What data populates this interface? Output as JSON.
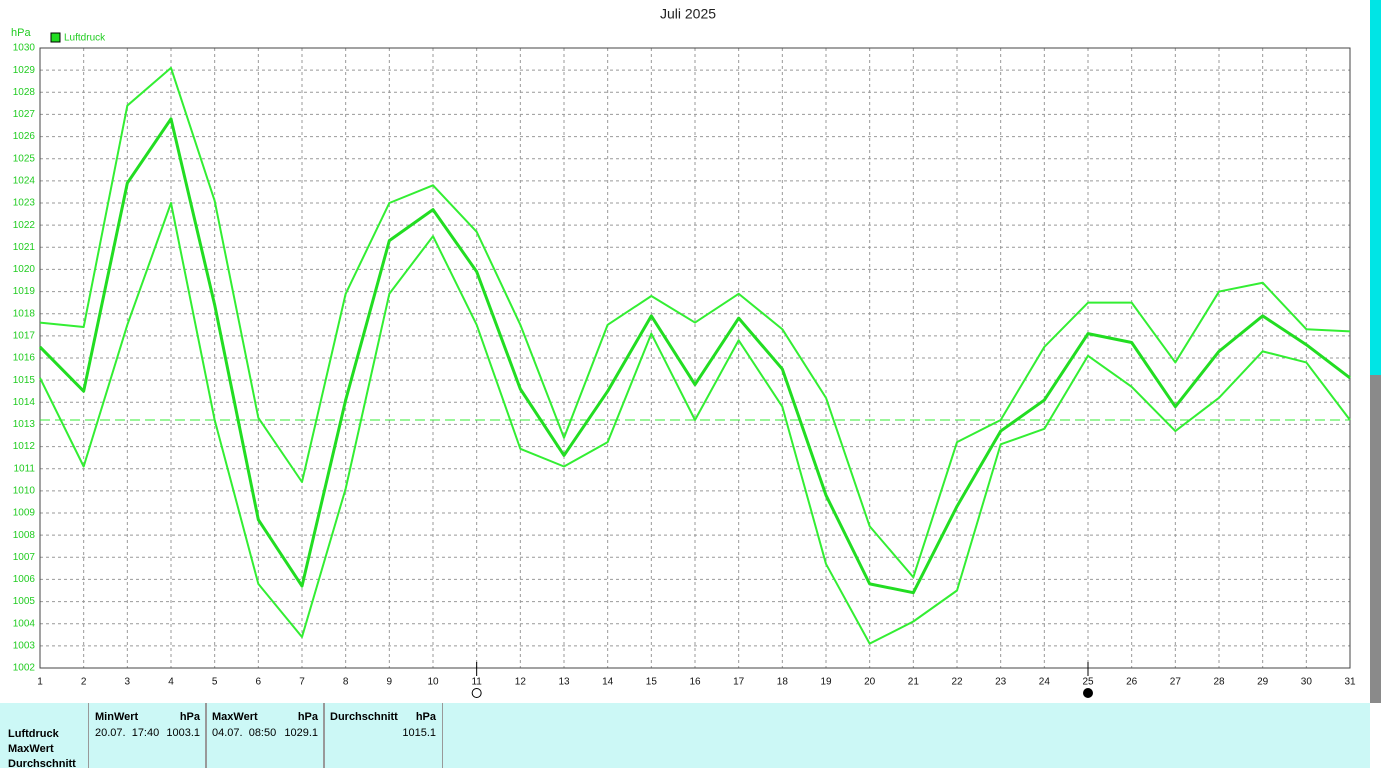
{
  "chart_data": {
    "type": "line",
    "title": "Juli 2025",
    "y_unit": "hPa",
    "x": [
      1,
      2,
      3,
      4,
      5,
      6,
      7,
      8,
      9,
      10,
      11,
      12,
      13,
      14,
      15,
      16,
      17,
      18,
      19,
      20,
      21,
      22,
      23,
      24,
      25,
      26,
      27,
      28,
      29,
      30,
      31
    ],
    "xlim": [
      1,
      31
    ],
    "xticks": [
      1,
      2,
      3,
      4,
      5,
      6,
      7,
      8,
      9,
      10,
      11,
      12,
      13,
      14,
      15,
      16,
      17,
      18,
      19,
      20,
      21,
      22,
      23,
      24,
      25,
      26,
      27,
      28,
      29,
      30,
      31
    ],
    "ylim": [
      1002,
      1030
    ],
    "yticks": [
      1002,
      1003,
      1004,
      1005,
      1006,
      1007,
      1008,
      1009,
      1010,
      1011,
      1012,
      1013,
      1014,
      1015,
      1016,
      1017,
      1018,
      1019,
      1020,
      1021,
      1022,
      1023,
      1024,
      1025,
      1026,
      1027,
      1028,
      1029,
      1030
    ],
    "grid": true,
    "legend": "top-left",
    "series": [
      {
        "color": "#33ee33",
        "values": [
          1017.6,
          1017.4,
          1027.4,
          1029.1,
          1023.1,
          1013.3,
          1010.4,
          1018.9,
          1023.0,
          1023.8,
          1021.7,
          1017.5,
          1012.4,
          1017.5,
          1018.8,
          1017.6,
          1018.9,
          1017.3,
          1014.2,
          1008.4,
          1006.1,
          1012.2,
          1013.2,
          1016.5,
          1018.5,
          1018.5,
          1015.8,
          1019.0,
          1019.4,
          1017.3,
          1017.2
        ]
      },
      {
        "name": "Luftdruck",
        "color": "#22dd22",
        "values": [
          1016.5,
          1014.5,
          1023.9,
          1026.8,
          1018.4,
          1008.7,
          1005.7,
          1014.1,
          1021.3,
          1022.7,
          1019.9,
          1014.6,
          1011.6,
          1014.5,
          1017.9,
          1014.8,
          1017.8,
          1015.5,
          1009.8,
          1005.8,
          1005.4,
          1009.3,
          1012.7,
          1014.1,
          1017.1,
          1016.7,
          1013.8,
          1016.3,
          1017.9,
          1016.6,
          1015.1
        ]
      },
      {
        "color": "#33ee33",
        "values": [
          1015.1,
          1011.1,
          1017.5,
          1023.0,
          1013.2,
          1005.8,
          1003.4,
          1010.1,
          1018.9,
          1021.5,
          1017.5,
          1011.9,
          1011.1,
          1012.2,
          1017.1,
          1013.2,
          1016.8,
          1013.8,
          1006.7,
          1003.1,
          1004.1,
          1005.5,
          1012.1,
          1012.8,
          1016.1,
          1014.7,
          1012.7,
          1014.2,
          1016.3,
          1015.8,
          1013.2
        ]
      }
    ],
    "reference_line": {
      "value": 1013.2,
      "color": "#33ee33"
    },
    "moon_phases": [
      {
        "x": 11,
        "filled": false
      },
      {
        "x": 25,
        "filled": true
      }
    ]
  },
  "table": {
    "row_labels": [
      "Luftdruck",
      "MaxWert",
      "Durchschnitt"
    ],
    "columns": [
      {
        "header": "MinWert",
        "unit": "hPa",
        "time": "20.07.  17:40",
        "value": "1003.1"
      },
      {
        "header": "MaxWert",
        "unit": "hPa",
        "time": "04.07.  08:50",
        "value": "1029.1"
      },
      {
        "header": "Durchschnitt",
        "unit": "hPa",
        "time": "",
        "value": "1015.1"
      }
    ]
  }
}
